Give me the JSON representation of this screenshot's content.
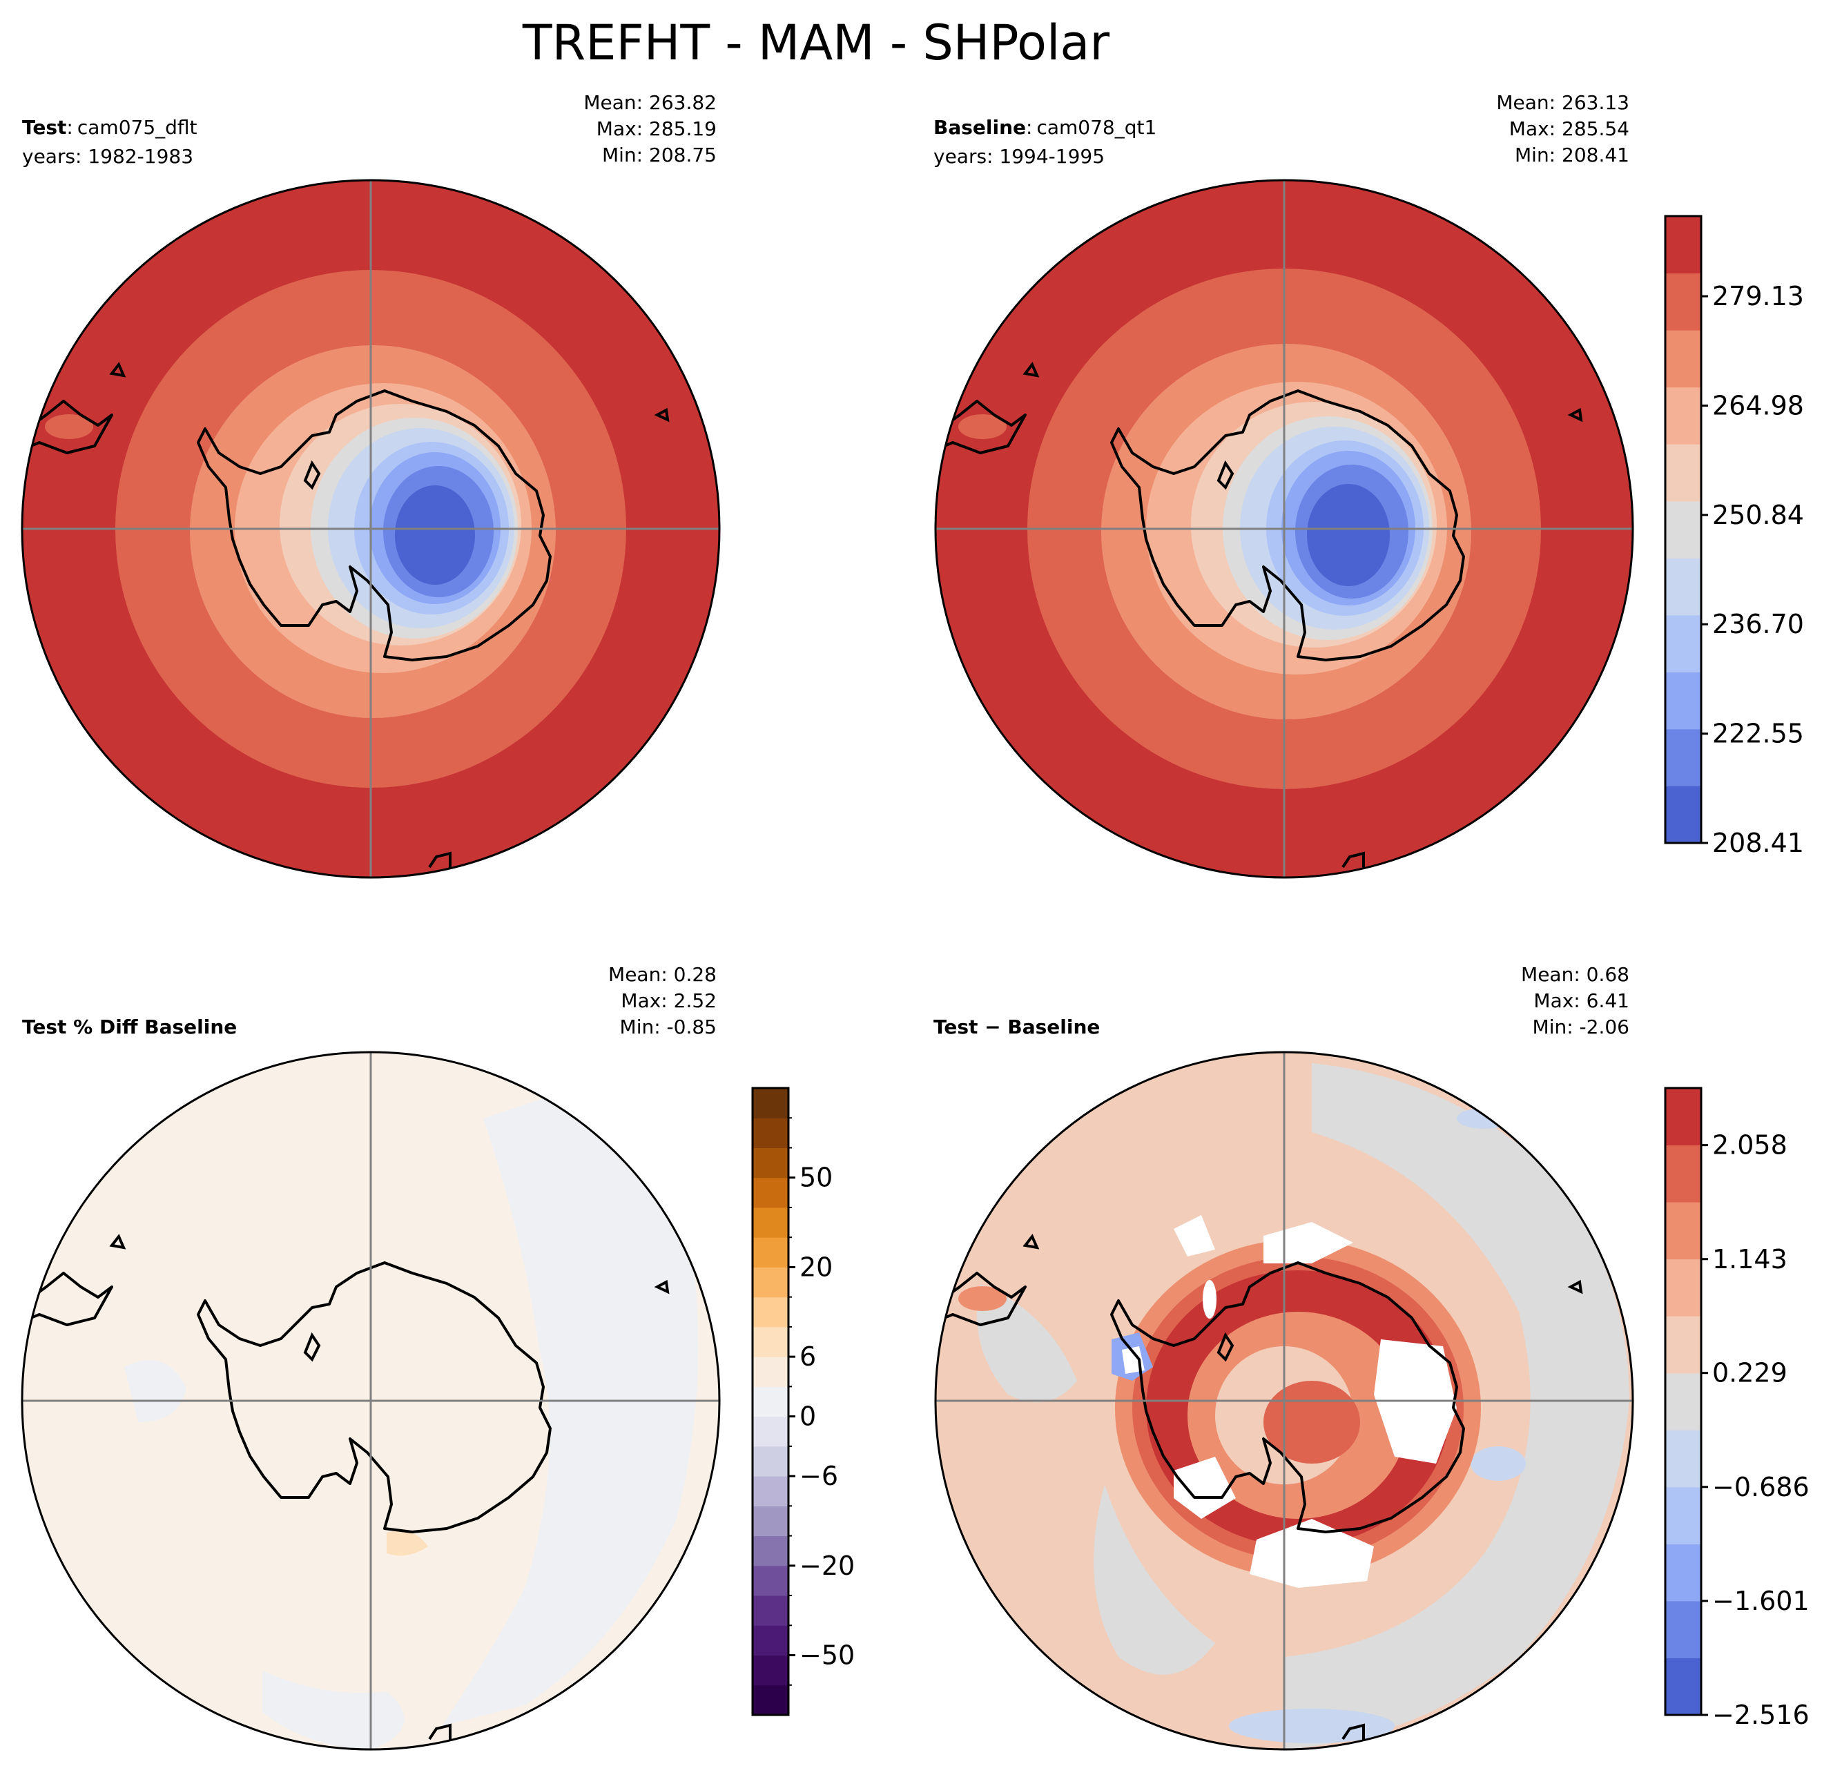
{
  "title": "TREFHT - MAM - SHPolar",
  "chart_data": [
    {
      "type": "polar_contour_map",
      "projection": "south-polar-stereographic",
      "panel": "test",
      "label_bold": "Test",
      "label_sep": ":",
      "case_name": "cam075_dflt",
      "years_label": "years: 1982-1983",
      "stats": [
        "Mean: 263.82",
        "Max: 285.19",
        "Min: 208.75"
      ],
      "levels_colors": [
        "#4a63d0",
        "#6b85e6",
        "#8ea8f5",
        "#aec4f7",
        "#c8d6ef",
        "#dcdcdc",
        "#f2cdb9",
        "#f4b196",
        "#ed8e6f",
        "#de6450",
        "#c63434"
      ],
      "colorbar": "shared-with-baseline"
    },
    {
      "type": "polar_contour_map",
      "projection": "south-polar-stereographic",
      "panel": "baseline",
      "label_bold": "Baseline",
      "label_sep": ":",
      "case_name": "cam078_qt1",
      "years_label": "years: 1994-1995",
      "stats": [
        "Mean: 263.13",
        "Max: 285.54",
        "Min: 208.41"
      ],
      "levels_colors": [
        "#4a63d0",
        "#6b85e6",
        "#8ea8f5",
        "#aec4f7",
        "#c8d6ef",
        "#dcdcdc",
        "#f2cdb9",
        "#f4b196",
        "#ed8e6f",
        "#de6450",
        "#c63434"
      ],
      "colorbar": {
        "ticks": [
          "279.13",
          "264.98",
          "250.84",
          "236.70",
          "222.55",
          "208.41"
        ],
        "tick_values": [
          279.13,
          264.98,
          250.84,
          236.7,
          222.55,
          208.41
        ],
        "range": [
          208.41,
          289.5
        ],
        "colors": [
          "#4a63d0",
          "#6b85e6",
          "#8ea8f5",
          "#aec4f7",
          "#c8d6ef",
          "#dcdcdc",
          "#f2cdb9",
          "#f4b196",
          "#ed8e6f",
          "#de6450",
          "#c63434"
        ]
      }
    },
    {
      "type": "polar_contour_map",
      "projection": "south-polar-stereographic",
      "panel": "pct-diff",
      "label_bold": "Test % Diff Baseline",
      "stats": [
        "Mean:  0.28",
        "Max:  2.52",
        "Min: -0.85"
      ],
      "colorbar": {
        "ticks": [
          "50",
          "20",
          "6",
          "0",
          "−6",
          "−20",
          "−50"
        ],
        "band_colors": [
          "#2d004b",
          "#3c0a5e",
          "#4b1a74",
          "#5d3088",
          "#6f4f9c",
          "#8574ae",
          "#a197c3",
          "#bab5d6",
          "#cfcfe4",
          "#e2e3ee",
          "#eef0f3",
          "#f9ecdf",
          "#fde0bd",
          "#fdcd93",
          "#f9b564",
          "#f09e39",
          "#e0871d",
          "#c86c0f",
          "#a65408",
          "#864008",
          "#6b3409"
        ],
        "tick_band_positions": [
          18,
          15,
          12,
          10,
          8,
          5,
          2
        ]
      }
    },
    {
      "type": "polar_contour_map",
      "projection": "south-polar-stereographic",
      "panel": "diff",
      "label_bold": "Test − Baseline",
      "stats": [
        "Mean:  0.68",
        "Max:  6.41",
        "Min: -2.06"
      ],
      "colorbar": {
        "ticks": [
          "2.058",
          "1.143",
          "0.229",
          "−0.686",
          "−1.601",
          "−2.516"
        ],
        "tick_values": [
          2.058,
          1.143,
          0.229,
          -0.686,
          -1.601,
          -2.516
        ],
        "range": [
          -2.516,
          2.516
        ],
        "colors": [
          "#4a63d0",
          "#6b85e6",
          "#8ea8f5",
          "#aec4f7",
          "#c8d6ef",
          "#dcdcdc",
          "#f2cdb9",
          "#f4b196",
          "#ed8e6f",
          "#de6450",
          "#c63434"
        ]
      }
    }
  ]
}
